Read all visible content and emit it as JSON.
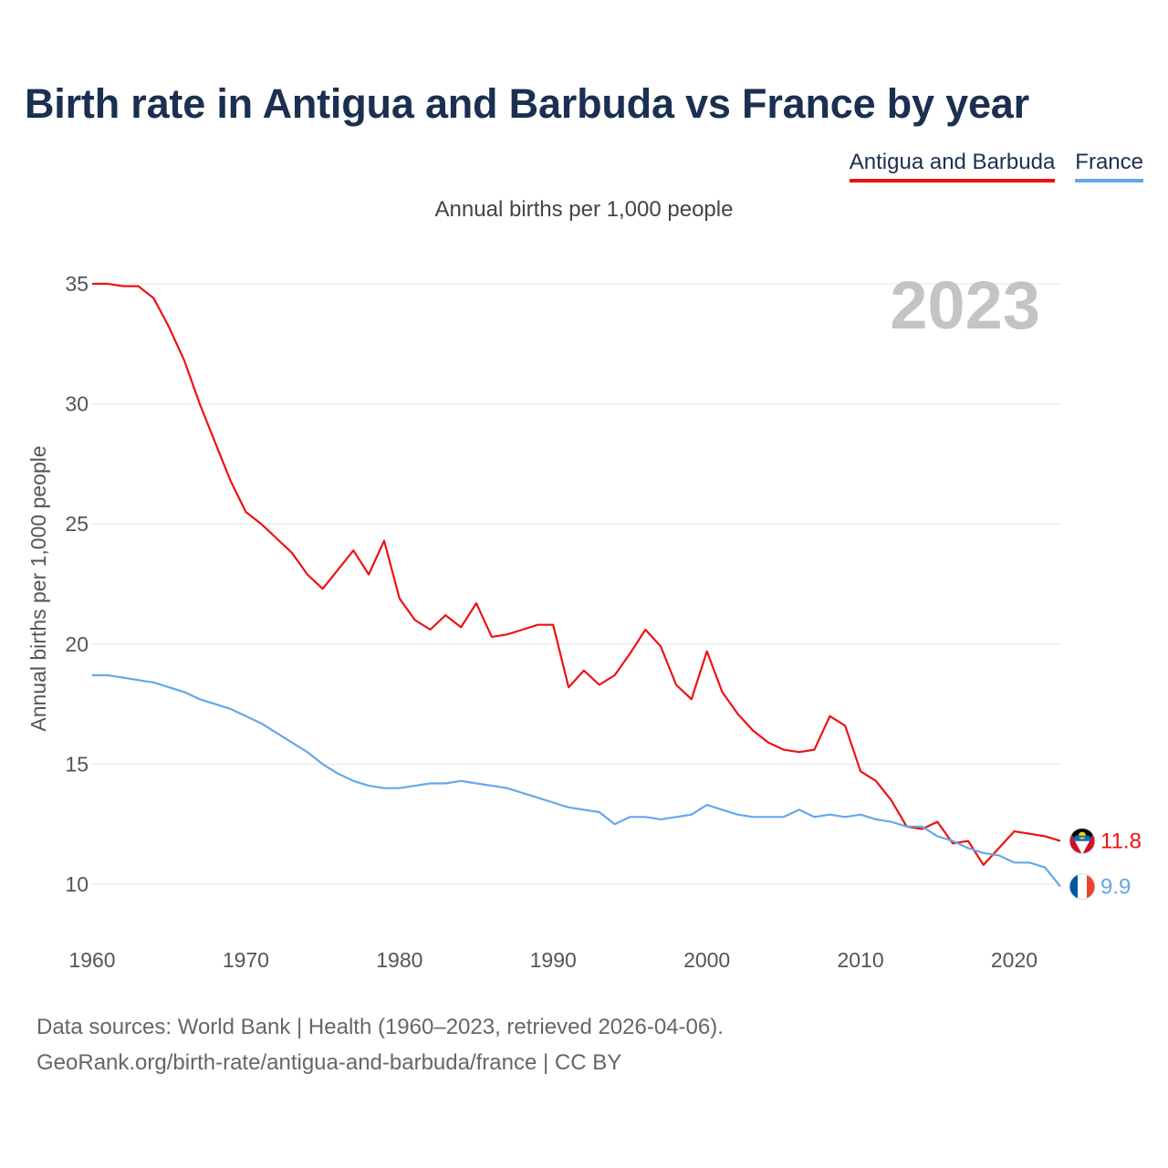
{
  "title": "Birth rate in Antigua and Barbuda vs France by year",
  "subtitle": "Annual births per 1,000 people",
  "legend": [
    "Antigua and Barbuda",
    "France"
  ],
  "footer": {
    "line1": "Data sources: World Bank | Health (1960–2023, retrieved 2026-04-06).",
    "line2": "GeoRank.org/birth-rate/antigua-and-barbuda/france | CC BY"
  },
  "colors": {
    "antigua": "#ee1111",
    "france": "#64a8e8",
    "title": "#1b3050",
    "watermark": "#c4c4c4",
    "grid": "#e6e6e6"
  },
  "chart_data": {
    "type": "line",
    "title": "Birth rate in Antigua and Barbuda vs France by year",
    "ylabel": "Annual births per 1,000 people",
    "xlabel": "",
    "year_label": "2023",
    "xlim": [
      1960,
      2023
    ],
    "ylim": [
      8,
      37
    ],
    "x_ticks": [
      1960,
      1970,
      1980,
      1990,
      2000,
      2010,
      2020
    ],
    "y_ticks": [
      10,
      15,
      20,
      25,
      30,
      35
    ],
    "grid": true,
    "x": [
      1960,
      1961,
      1962,
      1963,
      1964,
      1965,
      1966,
      1967,
      1968,
      1969,
      1970,
      1971,
      1972,
      1973,
      1974,
      1975,
      1976,
      1977,
      1978,
      1979,
      1980,
      1981,
      1982,
      1983,
      1984,
      1985,
      1986,
      1987,
      1988,
      1989,
      1990,
      1991,
      1992,
      1993,
      1994,
      1995,
      1996,
      1997,
      1998,
      1999,
      2000,
      2001,
      2002,
      2003,
      2004,
      2005,
      2006,
      2007,
      2008,
      2009,
      2010,
      2011,
      2012,
      2013,
      2014,
      2015,
      2016,
      2017,
      2018,
      2019,
      2020,
      2021,
      2022,
      2023
    ],
    "series": [
      {
        "name": "Antigua and Barbuda",
        "color": "#ee1111",
        "end_label": "11.8",
        "values": [
          35.0,
          35.0,
          34.9,
          34.9,
          34.4,
          33.2,
          31.8,
          30.0,
          28.4,
          26.8,
          25.5,
          25.0,
          24.4,
          23.8,
          22.9,
          22.3,
          23.1,
          23.9,
          22.9,
          24.3,
          21.9,
          21.0,
          20.6,
          21.2,
          20.7,
          21.7,
          20.3,
          20.4,
          20.6,
          20.8,
          20.8,
          18.2,
          18.9,
          18.3,
          18.7,
          19.6,
          20.6,
          19.9,
          18.3,
          17.7,
          19.7,
          18.0,
          17.1,
          16.4,
          15.9,
          15.6,
          15.5,
          15.6,
          17.0,
          16.6,
          14.7,
          14.3,
          13.5,
          12.4,
          12.3,
          12.6,
          11.7,
          11.8,
          10.8,
          11.5,
          12.2,
          12.1,
          12.0,
          11.8
        ]
      },
      {
        "name": "France",
        "color": "#64a8e8",
        "end_label": "9.9",
        "values": [
          18.7,
          18.7,
          18.6,
          18.5,
          18.4,
          18.2,
          18.0,
          17.7,
          17.5,
          17.3,
          17.0,
          16.7,
          16.3,
          15.9,
          15.5,
          15.0,
          14.6,
          14.3,
          14.1,
          14.0,
          14.0,
          14.1,
          14.2,
          14.2,
          14.3,
          14.2,
          14.1,
          14.0,
          13.8,
          13.6,
          13.4,
          13.2,
          13.1,
          13.0,
          12.5,
          12.8,
          12.8,
          12.7,
          12.8,
          12.9,
          13.3,
          13.1,
          12.9,
          12.8,
          12.8,
          12.8,
          13.1,
          12.8,
          12.9,
          12.8,
          12.9,
          12.7,
          12.6,
          12.4,
          12.4,
          12.0,
          11.8,
          11.5,
          11.3,
          11.2,
          10.9,
          10.9,
          10.7,
          9.9
        ]
      }
    ]
  }
}
